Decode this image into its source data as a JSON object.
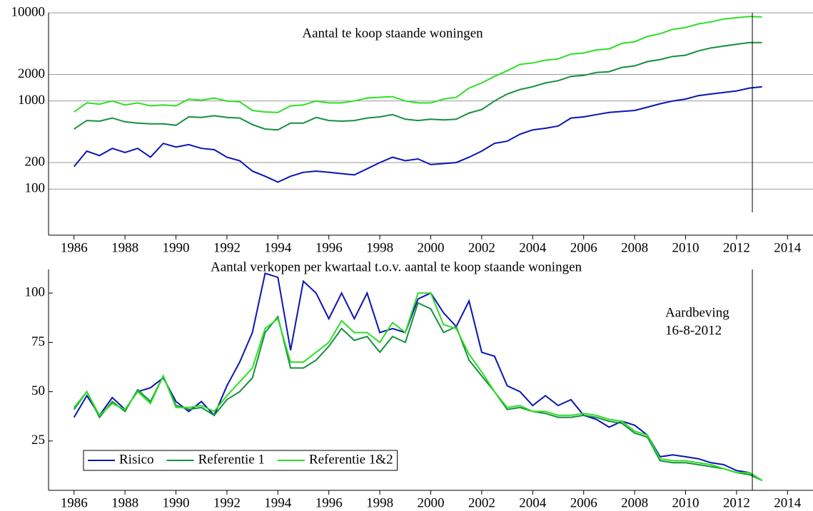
{
  "chart_data": [
    {
      "type": "line",
      "title": "Aantal te koop staande woningen",
      "log_scale": true,
      "grid": true,
      "xlim": [
        1985,
        2015
      ],
      "xticks": [
        1986,
        1988,
        1990,
        1992,
        1994,
        1996,
        1998,
        2000,
        2002,
        2004,
        2006,
        2008,
        2010,
        2012,
        2014
      ],
      "ylim": [
        30,
        10000
      ],
      "yticks": [
        100,
        200,
        1000,
        2000,
        10000
      ],
      "vline": 2012.62,
      "x": [
        1986,
        1986.5,
        1987,
        1987.5,
        1988,
        1988.5,
        1989,
        1989.5,
        1990,
        1990.5,
        1991,
        1991.5,
        1992,
        1992.5,
        1993,
        1993.5,
        1994,
        1994.5,
        1995,
        1995.5,
        1996,
        1996.5,
        1997,
        1997.5,
        1998,
        1998.5,
        1999,
        1999.5,
        2000,
        2000.5,
        2001,
        2001.5,
        2002,
        2002.5,
        2003,
        2003.5,
        2004,
        2004.5,
        2005,
        2005.5,
        2006,
        2006.5,
        2007,
        2007.5,
        2008,
        2008.5,
        2009,
        2009.5,
        2010,
        2010.5,
        2011,
        2011.5,
        2012,
        2012.5,
        2013
      ],
      "series": [
        {
          "color": "#0a14b4",
          "values": [
            180,
            270,
            240,
            290,
            260,
            290,
            230,
            330,
            300,
            320,
            290,
            280,
            230,
            210,
            160,
            140,
            120,
            140,
            155,
            160,
            155,
            150,
            145,
            170,
            200,
            230,
            210,
            220,
            190,
            195,
            200,
            230,
            270,
            330,
            350,
            420,
            470,
            490,
            520,
            640,
            660,
            700,
            740,
            760,
            780,
            850,
            930,
            1000,
            1050,
            1150,
            1200,
            1250,
            1300,
            1400,
            1450
          ]
        },
        {
          "color": "#15903c",
          "values": [
            480,
            600,
            590,
            640,
            580,
            560,
            550,
            550,
            530,
            660,
            650,
            680,
            650,
            640,
            540,
            480,
            470,
            560,
            560,
            650,
            600,
            590,
            600,
            640,
            660,
            700,
            620,
            600,
            620,
            610,
            620,
            730,
            800,
            1000,
            1200,
            1350,
            1450,
            1600,
            1700,
            1900,
            1950,
            2100,
            2150,
            2400,
            2500,
            2800,
            2950,
            3200,
            3300,
            3700,
            4000,
            4200,
            4400,
            4600,
            4600
          ]
        },
        {
          "color": "#2ede26",
          "values": [
            750,
            950,
            920,
            1000,
            900,
            950,
            880,
            900,
            880,
            1050,
            1020,
            1080,
            1000,
            980,
            780,
            750,
            740,
            880,
            900,
            1000,
            950,
            950,
            1000,
            1080,
            1100,
            1120,
            1000,
            950,
            950,
            1050,
            1100,
            1400,
            1600,
            1900,
            2200,
            2600,
            2700,
            2900,
            3000,
            3400,
            3500,
            3800,
            3900,
            4500,
            4700,
            5400,
            5800,
            6500,
            6800,
            7500,
            7900,
            8500,
            8800,
            9100,
            9000
          ]
        }
      ]
    },
    {
      "type": "line",
      "title": "Aantal verkopen per kwartaal t.o.v. aantal te koop staande woningen",
      "log_scale": false,
      "grid": false,
      "xlim": [
        1985,
        2015
      ],
      "xticks": [
        1986,
        1988,
        1990,
        1992,
        1994,
        1996,
        1998,
        2000,
        2002,
        2004,
        2006,
        2008,
        2010,
        2012,
        2014
      ],
      "ylim": [
        0,
        112
      ],
      "yticks": [
        25,
        50,
        75,
        100
      ],
      "vline": 2012.62,
      "annotation": [
        "Aardbeving",
        "16-8-2012"
      ],
      "legend": "lower left",
      "x": [
        1986,
        1986.5,
        1987,
        1987.5,
        1988,
        1988.5,
        1989,
        1989.5,
        1990,
        1990.5,
        1991,
        1991.5,
        1992,
        1992.5,
        1993,
        1993.5,
        1994,
        1994.5,
        1995,
        1995.5,
        1996,
        1996.5,
        1997,
        1997.5,
        1998,
        1998.5,
        1999,
        1999.5,
        2000,
        2000.5,
        2001,
        2001.5,
        2002,
        2002.5,
        2003,
        2003.5,
        2004,
        2004.5,
        2005,
        2005.5,
        2006,
        2006.5,
        2007,
        2007.5,
        2008,
        2008.5,
        2009,
        2009.5,
        2010,
        2010.5,
        2011,
        2011.5,
        2012,
        2012.5,
        2013
      ],
      "series": [
        {
          "name": "Risico",
          "color": "#0a14b4",
          "values": [
            37,
            48,
            38,
            47,
            41,
            50,
            52,
            57,
            45,
            40,
            45,
            38,
            53,
            65,
            80,
            110,
            108,
            71,
            106,
            100,
            87,
            100,
            87,
            100,
            80,
            82,
            80,
            97,
            100,
            90,
            83,
            96,
            70,
            68,
            53,
            50,
            43,
            48,
            43,
            46,
            38,
            36,
            32,
            35,
            33,
            28,
            17,
            18,
            17,
            16,
            14,
            13,
            10,
            9,
            5
          ]
        },
        {
          "name": "Referentie 1",
          "color": "#15903c",
          "values": [
            41,
            50,
            37,
            45,
            40,
            51,
            45,
            58,
            43,
            41,
            42,
            38,
            46,
            50,
            57,
            80,
            88,
            62,
            62,
            66,
            73,
            82,
            76,
            78,
            70,
            78,
            75,
            95,
            92,
            80,
            83,
            66,
            58,
            50,
            41,
            42,
            40,
            39,
            37,
            37,
            38,
            37,
            35,
            34,
            29,
            27,
            15,
            14,
            14,
            13,
            12,
            11,
            9,
            8,
            5
          ]
        },
        {
          "name": "Referentie 1&2",
          "color": "#2ede26",
          "values": [
            42,
            50,
            38,
            44,
            41,
            50,
            44,
            58,
            42,
            42,
            43,
            40,
            48,
            55,
            62,
            82,
            87,
            65,
            65,
            70,
            75,
            86,
            80,
            80,
            75,
            85,
            80,
            100,
            100,
            84,
            82,
            69,
            60,
            50,
            42,
            43,
            40,
            40,
            38,
            38,
            39,
            38,
            36,
            35,
            30,
            28,
            16,
            15,
            15,
            14,
            13,
            11,
            9,
            9,
            5
          ]
        }
      ]
    }
  ]
}
